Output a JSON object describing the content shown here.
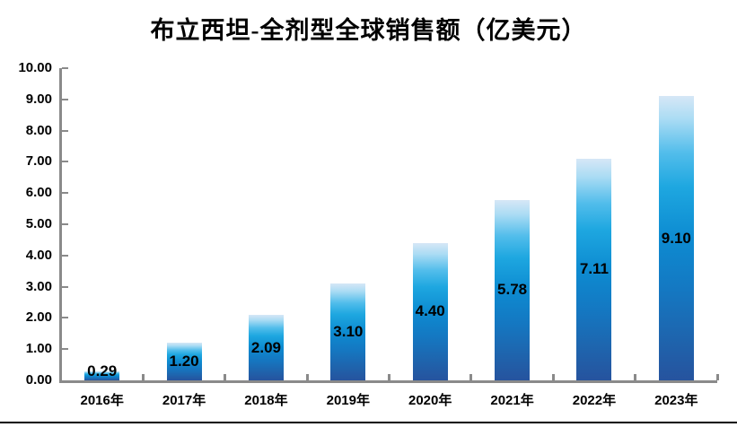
{
  "chart_data": {
    "type": "bar",
    "title": "布立西坦-全剂型全球销售额（亿美元）",
    "categories": [
      "2016年",
      "2017年",
      "2018年",
      "2019年",
      "2020年",
      "2021年",
      "2022年",
      "2023年"
    ],
    "values": [
      0.29,
      1.2,
      2.09,
      3.1,
      4.4,
      5.78,
      7.11,
      9.1
    ],
    "data_labels": [
      "0.29",
      "1.20",
      "2.09",
      "3.10",
      "4.40",
      "5.78",
      "7.11",
      "9.10"
    ],
    "data_label_position": "center-inside-bar",
    "xlabel": "",
    "ylabel": "",
    "ylim": [
      0,
      10
    ],
    "ytick_step": 1,
    "ytick_labels": [
      "0.00",
      "1.00",
      "2.00",
      "3.00",
      "4.00",
      "5.00",
      "6.00",
      "7.00",
      "8.00",
      "9.00",
      "10.00"
    ],
    "grid": false,
    "legend": "none"
  },
  "colors": {
    "background": "#ffffff",
    "axis": "#8a8a8a",
    "text": "#000000",
    "bottom_border": "#000000",
    "bar_gradient_stops": [
      "#d6e7f6 0%",
      "#abdcf4 8%",
      "#52bdeb 20%",
      "#1ea7e0 32%",
      "#0d8bd1 50%",
      "#1478c2 68%",
      "#1e65ae 85%",
      "#26539e 100%"
    ]
  }
}
